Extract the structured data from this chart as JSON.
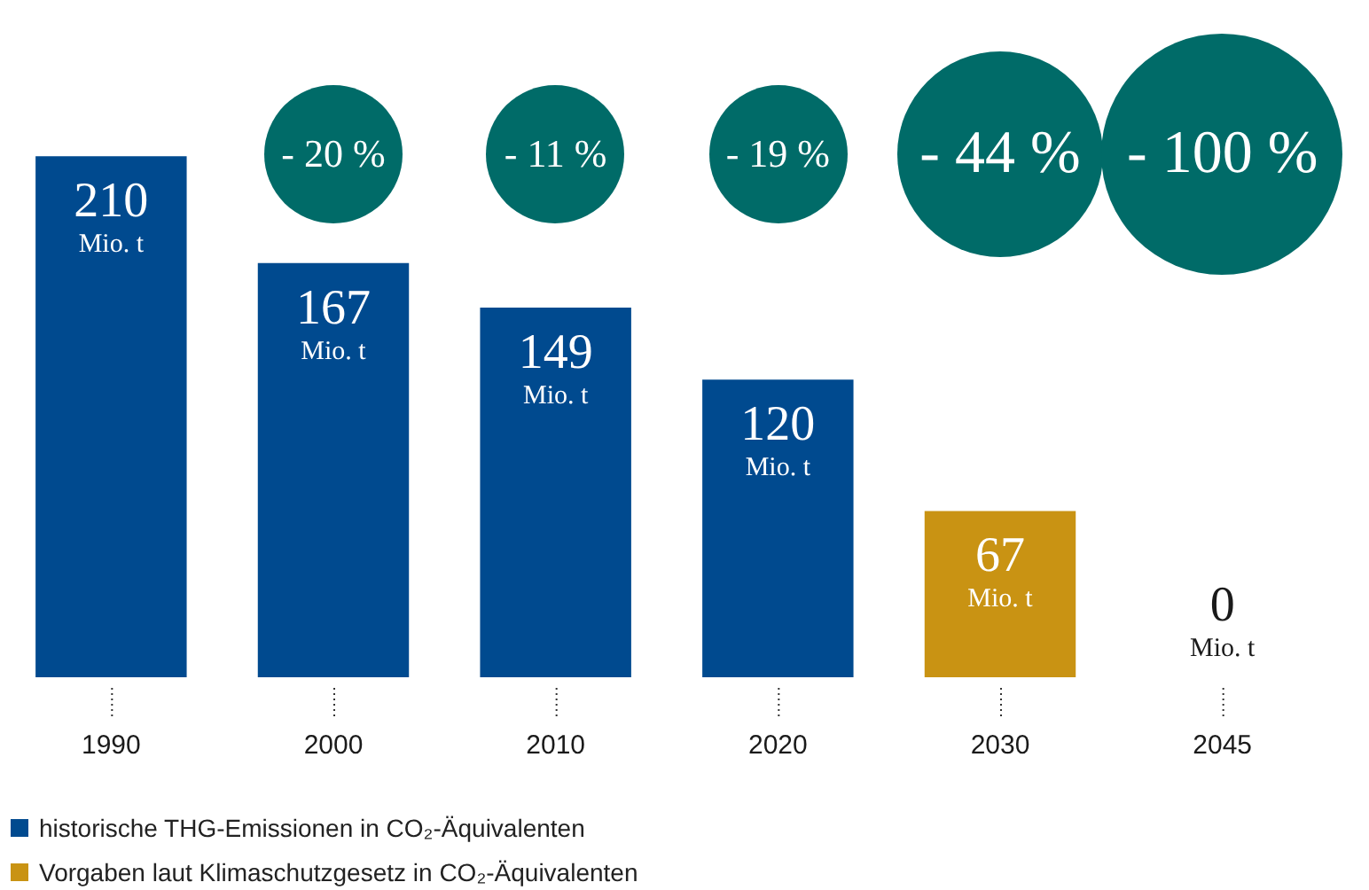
{
  "chart_data": {
    "type": "bar",
    "categories": [
      "1990",
      "2000",
      "2010",
      "2020",
      "2030",
      "2045"
    ],
    "stacked": true,
    "legend": "bottom left",
    "grid": false,
    "series": [
      {
        "name": "historische THG-Emissionen in CO₂-Äquivalenten",
        "color": "#004a8f",
        "values": [
          210,
          167,
          149,
          120,
          null,
          null
        ],
        "value_labels": [
          "210 Mio. t",
          "167 Mio. t",
          "149 Mio. t",
          "120 Mio. t",
          null,
          null
        ]
      },
      {
        "name": "Vorgaben laut Klimaschutzgesetz in CO₂-Äquivalenten",
        "color": "#c99313",
        "values": [
          null,
          null,
          null,
          null,
          67,
          0
        ],
        "value_labels": [
          null,
          null,
          null,
          null,
          "67 Mio. t",
          "0 Mio. t"
        ]
      }
    ],
    "annotations": [
      "- 20 %",
      "- 11 %",
      "- 19 %",
      "- 44 %",
      "- 100 %"
    ]
  }
}
